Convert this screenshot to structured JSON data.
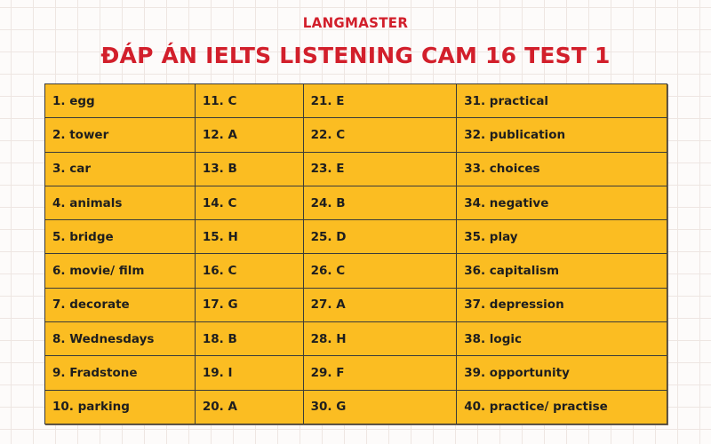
{
  "header": {
    "logo": "LANGMASTER",
    "title": "ĐÁP ÁN IELTS LISTENING CAM 16 TEST 1"
  },
  "colors": {
    "brand_red": "#d21f2b",
    "cell_yellow": "#fbbd22",
    "border": "#3a3a3a",
    "text": "#1e1e1e"
  },
  "answers": {
    "rows": [
      [
        "1. egg",
        "11. C",
        "21. E",
        "31. practical"
      ],
      [
        "2. tower",
        "12. A",
        "22. C",
        "32. publication"
      ],
      [
        "3. car",
        "13. B",
        "23. E",
        "33. choices"
      ],
      [
        "4. animals",
        "14. C",
        "24. B",
        "34. negative"
      ],
      [
        "5. bridge",
        "15. H",
        "25. D",
        "35. play"
      ],
      [
        "6. movie/ film",
        "16. C",
        "26. C",
        "36. capitalism"
      ],
      [
        "7. decorate",
        "17. G",
        "27. A",
        "37. depression"
      ],
      [
        "8. Wednesdays",
        "18. B",
        "28. H",
        "38. logic"
      ],
      [
        "9. Fradstone",
        "19. I",
        "29. F",
        "39. opportunity"
      ],
      [
        "10. parking",
        "20. A",
        "30. G",
        "40. practice/ practise"
      ]
    ]
  }
}
